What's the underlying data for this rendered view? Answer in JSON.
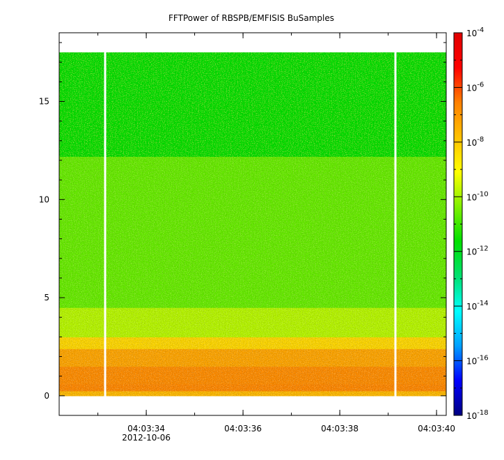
{
  "chart_data": {
    "type": "heatmap",
    "title": "FFTPower of RBSPB/EMFISIS  BuSamples",
    "xlabel": "",
    "ylabel": "",
    "x_tick_labels": [
      "04:03:34",
      "04:03:36",
      "04:03:38",
      "04:03:40"
    ],
    "x_tick_values_s": [
      34,
      36,
      38,
      40
    ],
    "x_date_label": "2012-10-06",
    "xlim_s": [
      32.2,
      40.2
    ],
    "x_minor_ticks_s": [
      33,
      34,
      35,
      36,
      37,
      38,
      39,
      40
    ],
    "y_ticks": [
      0,
      5,
      10,
      15
    ],
    "ylim": [
      -1,
      18.5
    ],
    "data_y_range": [
      0,
      17.5
    ],
    "gaps_s": [
      33.15,
      39.15
    ],
    "colorbar": {
      "scale": "log",
      "range_exp": [
        -18,
        -4
      ],
      "tick_exponents": [
        -4,
        -6,
        -8,
        -10,
        -12,
        -14,
        -16,
        -18
      ],
      "tick_base": "10",
      "colors": [
        "#000080",
        "#0000ff",
        "#00a0ff",
        "#00ffff",
        "#00e070",
        "#00e000",
        "#80f000",
        "#ffff00",
        "#ffc000",
        "#ff8000",
        "#ff0000",
        "#e00000"
      ]
    },
    "bands": [
      {
        "y_from": 0.0,
        "y_to": 0.25,
        "log10_power": -7.7
      },
      {
        "y_from": 0.25,
        "y_to": 0.6,
        "log10_power": -6.7
      },
      {
        "y_from": 0.6,
        "y_to": 1.5,
        "log10_power": -6.8
      },
      {
        "y_from": 1.5,
        "y_to": 2.4,
        "log10_power": -7.3
      },
      {
        "y_from": 2.4,
        "y_to": 3.0,
        "log10_power": -8.3
      },
      {
        "y_from": 3.0,
        "y_to": 4.5,
        "log10_power": -9.8
      },
      {
        "y_from": 4.5,
        "y_to": 12.2,
        "log10_power": -10.6
      },
      {
        "y_from": 12.2,
        "y_to": 15.0,
        "log10_power": -11.6
      },
      {
        "y_from": 15.0,
        "y_to": 17.5,
        "log10_power": -11.8
      }
    ]
  }
}
